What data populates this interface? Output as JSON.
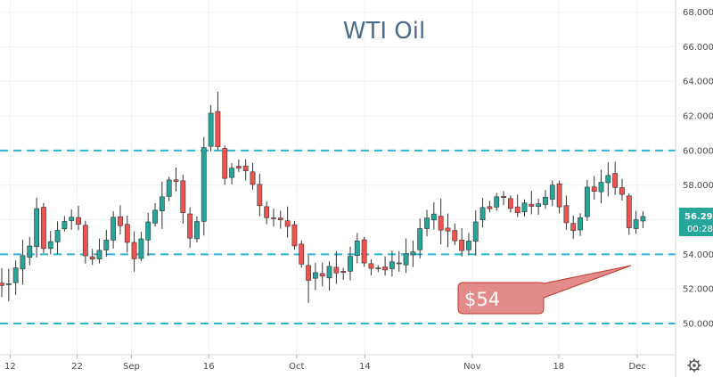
{
  "chart_data": {
    "type": "candlestick",
    "title": "WTI Oil",
    "ylim": [
      48.2,
      68.7
    ],
    "y_ticks": [
      "50.000",
      "52.000",
      "54.000",
      "56.000",
      "58.000",
      "60.000",
      "62.000",
      "64.000",
      "66.000",
      "68.000"
    ],
    "x_ticks": [
      "12",
      "22",
      "Sep",
      "16",
      "Oct",
      "14",
      "Nov",
      "18",
      "Dec"
    ],
    "horizontal_levels": [
      60.0,
      54.0,
      50.0
    ],
    "annotation": {
      "text": "$54"
    },
    "last_price": "56.298",
    "countdown": "00:28",
    "grid": true,
    "colors": {
      "up": "#26a69a",
      "down": "#ef5350",
      "wick": "#333333",
      "level_line": "#2bb5d0",
      "title": "#4d6b8a",
      "callout_fill": "#e38b8b",
      "callout_stroke": "#c0392b",
      "price_label": "#26a69a",
      "grid": "#eef1f5"
    },
    "close_path": [
      [
        0,
        52.3
      ],
      [
        1.2,
        52.5
      ],
      [
        2.6,
        53.9
      ],
      [
        4.0,
        54.5
      ],
      [
        4.6,
        57.1
      ],
      [
        5.2,
        56.1
      ],
      [
        6.2,
        54.1
      ],
      [
        7.2,
        54.6
      ],
      [
        8.0,
        55.2
      ],
      [
        9.0,
        55.8
      ],
      [
        10.0,
        56.2
      ],
      [
        11.2,
        55.7
      ],
      [
        12.0,
        54.1
      ],
      [
        12.6,
        53.3
      ],
      [
        13.2,
        54.0
      ],
      [
        14.5,
        54.1
      ],
      [
        15.5,
        55.6
      ],
      [
        16.6,
        56.3
      ],
      [
        17.2,
        55.7
      ],
      [
        18.0,
        54.6
      ],
      [
        19.0,
        53.9
      ],
      [
        20.0,
        54.8
      ],
      [
        21.0,
        55.9
      ],
      [
        22.2,
        56.5
      ],
      [
        23.2,
        57.4
      ],
      [
        24.2,
        58.3
      ],
      [
        25.2,
        58.1
      ],
      [
        26.0,
        56.2
      ],
      [
        26.8,
        54.8
      ],
      [
        27.6,
        55.0
      ],
      [
        28.6,
        57.4
      ],
      [
        29.2,
        61.2
      ],
      [
        29.8,
        62.5
      ],
      [
        30.6,
        61.5
      ],
      [
        31.4,
        59.1
      ],
      [
        32.2,
        58.4
      ],
      [
        33.2,
        59.0
      ],
      [
        34.2,
        59.1
      ],
      [
        35.4,
        58.9
      ],
      [
        36.2,
        57.6
      ],
      [
        37.0,
        56.7
      ],
      [
        38.0,
        56.3
      ],
      [
        38.8,
        56.0
      ],
      [
        39.6,
        56.4
      ],
      [
        40.2,
        55.9
      ],
      [
        41.0,
        55.4
      ],
      [
        42.0,
        54.6
      ],
      [
        43.0,
        53.2
      ],
      [
        44.0,
        52.3
      ],
      [
        45.0,
        52.8
      ],
      [
        46.0,
        52.6
      ],
      [
        47.0,
        53.1
      ],
      [
        48.2,
        52.7
      ],
      [
        49.2,
        53.2
      ],
      [
        50.2,
        54.2
      ],
      [
        50.8,
        54.9
      ],
      [
        51.6,
        54.0
      ],
      [
        52.6,
        53.1
      ],
      [
        53.4,
        53.3
      ],
      [
        54.4,
        52.8
      ],
      [
        55.4,
        53.3
      ],
      [
        56.2,
        53.7
      ],
      [
        57.2,
        53.4
      ],
      [
        58.2,
        53.9
      ],
      [
        59.2,
        54.1
      ],
      [
        60.0,
        55.4
      ],
      [
        61.0,
        56.0
      ],
      [
        62.0,
        56.5
      ],
      [
        63.0,
        55.6
      ],
      [
        64.0,
        55.2
      ],
      [
        65.0,
        54.7
      ],
      [
        65.8,
        54.1
      ],
      [
        66.8,
        54.7
      ],
      [
        67.8,
        56.0
      ],
      [
        68.8,
        56.5
      ],
      [
        69.8,
        56.8
      ],
      [
        70.8,
        57.1
      ],
      [
        71.6,
        57.7
      ],
      [
        72.4,
        56.8
      ],
      [
        73.4,
        56.9
      ],
      [
        74.4,
        56.4
      ],
      [
        75.4,
        57.2
      ],
      [
        76.2,
        56.5
      ],
      [
        77.2,
        57.2
      ],
      [
        78.2,
        57.4
      ],
      [
        79.2,
        57.9
      ],
      [
        80.0,
        56.9
      ],
      [
        81.0,
        55.9
      ],
      [
        81.6,
        55.4
      ],
      [
        82.4,
        55.2
      ],
      [
        83.2,
        56.4
      ],
      [
        84.0,
        57.7
      ],
      [
        84.6,
        58.0
      ],
      [
        85.2,
        57.6
      ],
      [
        86.2,
        58.1
      ],
      [
        87.0,
        58.4
      ],
      [
        87.6,
        58.2
      ],
      [
        88.4,
        57.9
      ],
      [
        88.9,
        58.1
      ],
      [
        89.3,
        56.3
      ],
      [
        89.8,
        55.3
      ],
      [
        90.6,
        55.6
      ],
      [
        91.4,
        56.0
      ],
      [
        92.2,
        56.3
      ]
    ]
  }
}
